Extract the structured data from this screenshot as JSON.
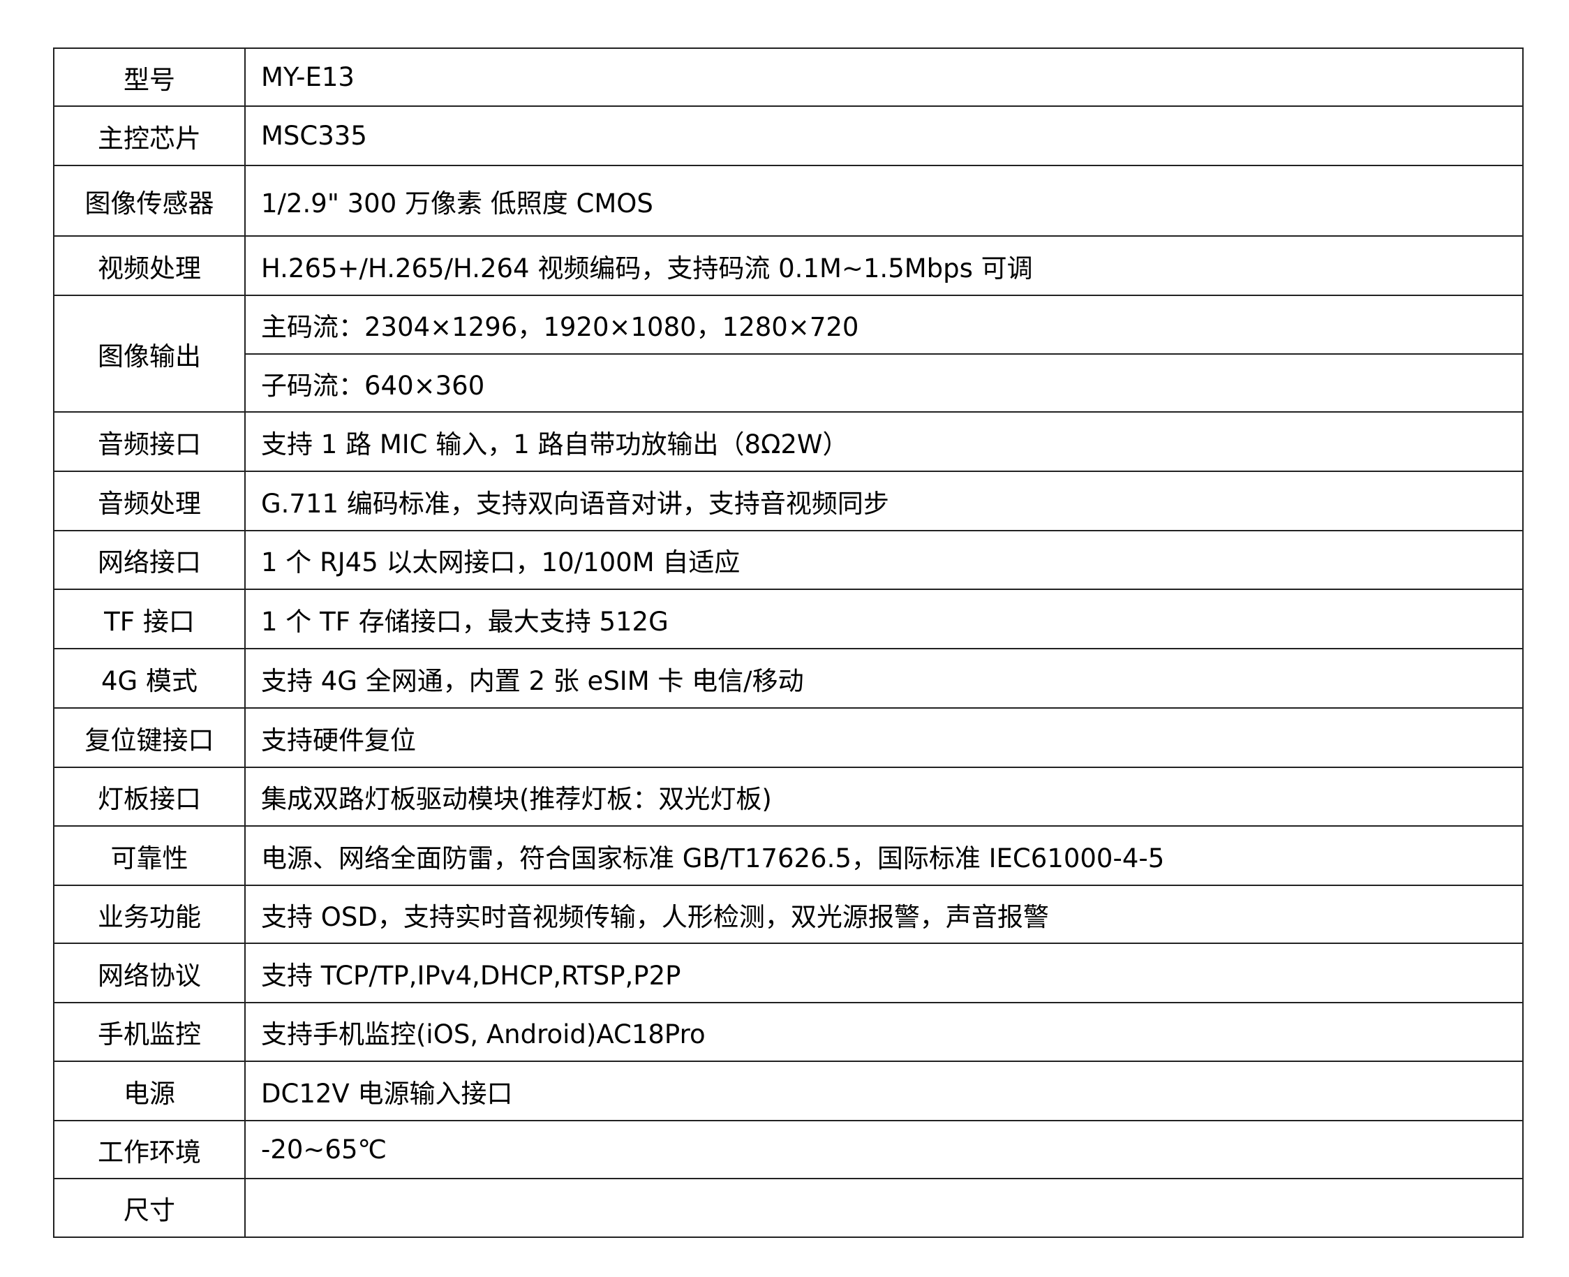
{
  "rows": [
    {
      "label": "型号",
      "values": [
        "MY-E13"
      ]
    },
    {
      "label": "主控芯片",
      "values": [
        "MSC335"
      ]
    },
    {
      "label": "图像传感器",
      "values": [
        "1/2.9\" 300 万像素 低照度 CMOS"
      ]
    },
    {
      "label": "视频处理",
      "values": [
        "H.265+/H.265/H.264 视频编码，支持码流 0.1M~1.5Mbps 可调"
      ]
    },
    {
      "label": "图像输出",
      "values": [
        "主码流：2304×1296，1920×1080，1280×720",
        "子码流：640×360"
      ]
    },
    {
      "label": "音频接口",
      "values": [
        "支持 1 路 MIC 输入，1 路自带功放输出（8Ω2W）"
      ]
    },
    {
      "label": "音频处理",
      "values": [
        "G.711 编码标准，支持双向语音对讲，支持音视频同步"
      ]
    },
    {
      "label": "网络接口",
      "values": [
        "1 个 RJ45 以太网接口，10/100M 自适应"
      ]
    },
    {
      "label": "TF 接口",
      "values": [
        "1 个 TF 存储接口，最大支持 512G"
      ]
    },
    {
      "label": "4G 模式",
      "values": [
        "支持 4G 全网通，内置 2 张 eSIM 卡 电信/移动"
      ]
    },
    {
      "label": "复位键接口",
      "values": [
        "支持硬件复位"
      ]
    },
    {
      "label": "灯板接口",
      "values": [
        "集成双路灯板驱动模块(推荐灯板：双光灯板)"
      ]
    },
    {
      "label": "可靠性",
      "values": [
        "电源、网络全面防雷，符合国家标准 GB/T17626.5，国际标准 IEC61000-4-5"
      ]
    },
    {
      "label": "业务功能",
      "values": [
        "支持 OSD，支持实时音视频传输，人形检测，双光源报警，声音报警"
      ]
    },
    {
      "label": "网络协议",
      "values": [
        "支持 TCP/TP,IPv4,DHCP,RTSP,P2P"
      ]
    },
    {
      "label": "手机监控",
      "values": [
        "支持手机监控(iOS, Android)AC18Pro"
      ]
    },
    {
      "label": "电源",
      "values": [
        "DC12V 电源输入接口"
      ]
    },
    {
      "label": "工作环境",
      "values": [
        "-20~65℃"
      ]
    },
    {
      "label": "尺寸",
      "values": [
        ""
      ]
    }
  ]
}
